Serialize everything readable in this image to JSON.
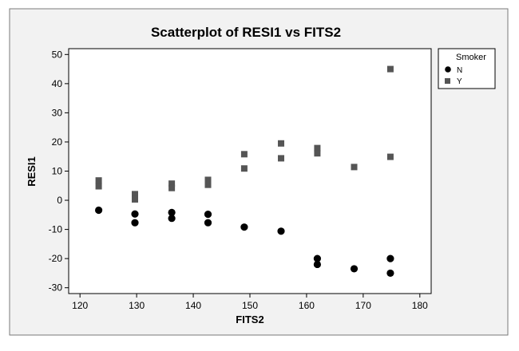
{
  "chart_data": {
    "type": "scatter",
    "title": "Scatterplot of RESI1 vs FITS2",
    "xlabel": "FITS2",
    "ylabel": "RESI1",
    "xlim": [
      118,
      182
    ],
    "ylim": [
      -32,
      52
    ],
    "xticks": [
      120,
      130,
      140,
      150,
      160,
      170,
      180
    ],
    "yticks": [
      -30,
      -20,
      -10,
      0,
      10,
      20,
      30,
      40,
      50
    ],
    "grid": false,
    "legend": {
      "title": "Smoker",
      "placement": "top-right-outside",
      "entries": [
        {
          "label": "N",
          "marker": "circle",
          "color": "#000000"
        },
        {
          "label": "Y",
          "marker": "square",
          "color": "#555555"
        }
      ]
    },
    "series": [
      {
        "name": "N",
        "marker": "circle",
        "color": "#000000",
        "points": [
          {
            "x": 123.3,
            "y": -3.4
          },
          {
            "x": 129.7,
            "y": -4.7
          },
          {
            "x": 129.7,
            "y": -7.7
          },
          {
            "x": 136.2,
            "y": -4.2
          },
          {
            "x": 136.2,
            "y": -6.2
          },
          {
            "x": 142.6,
            "y": -4.8
          },
          {
            "x": 142.6,
            "y": -7.7
          },
          {
            "x": 149.0,
            "y": -9.2
          },
          {
            "x": 155.5,
            "y": -10.6
          },
          {
            "x": 161.9,
            "y": -20.0
          },
          {
            "x": 161.9,
            "y": -22.0
          },
          {
            "x": 168.4,
            "y": -23.5
          },
          {
            "x": 174.8,
            "y": -20.0
          },
          {
            "x": 174.8,
            "y": -25.0
          }
        ]
      },
      {
        "name": "Y",
        "marker": "square",
        "color": "#555555",
        "points": [
          {
            "x": 123.3,
            "y": 6.8
          },
          {
            "x": 123.3,
            "y": 4.8
          },
          {
            "x": 129.7,
            "y": 2.1
          },
          {
            "x": 129.7,
            "y": 0.3
          },
          {
            "x": 136.2,
            "y": 5.7
          },
          {
            "x": 136.2,
            "y": 4.2
          },
          {
            "x": 142.6,
            "y": 7.0
          },
          {
            "x": 142.6,
            "y": 5.3
          },
          {
            "x": 149.0,
            "y": 15.8
          },
          {
            "x": 149.0,
            "y": 10.9
          },
          {
            "x": 155.5,
            "y": 19.5
          },
          {
            "x": 155.5,
            "y": 14.4
          },
          {
            "x": 161.9,
            "y": 17.9
          },
          {
            "x": 161.9,
            "y": 16.1
          },
          {
            "x": 168.4,
            "y": 11.4
          },
          {
            "x": 174.8,
            "y": 45.0
          },
          {
            "x": 174.8,
            "y": 14.9
          }
        ]
      }
    ]
  }
}
